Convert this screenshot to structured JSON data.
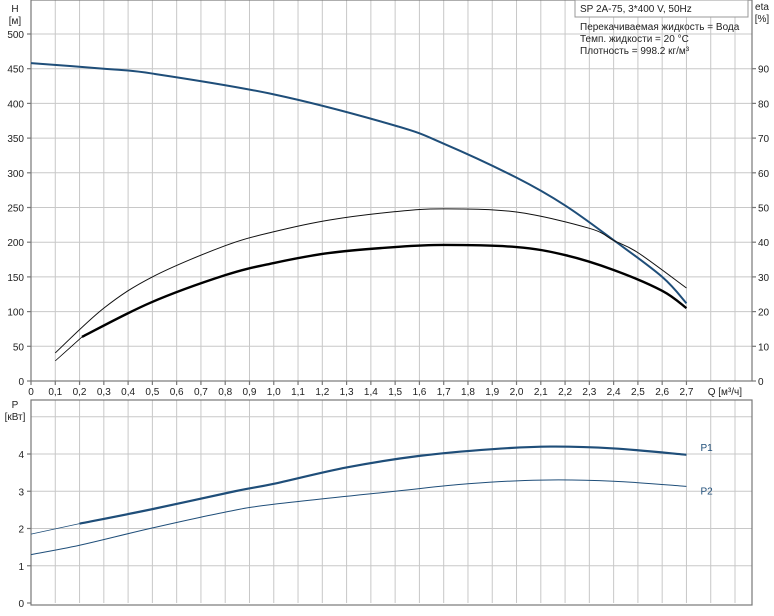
{
  "title_box": "SP 2A-75, 3*400 V, 50Hz",
  "info_lines": [
    "Перекачиваемая жидкость = Вода",
    "Темп. жидкости = 20 °C",
    "Плотность = 998.2 кг/м³"
  ],
  "chart_data": [
    {
      "type": "line",
      "xlabel": "Q [м³/ч]",
      "ylabel": "H\n[м]",
      "y2label": "eta\n[%]",
      "xlim": [
        0,
        2.97
      ],
      "ylim": [
        0,
        549
      ],
      "y2lim": [
        0,
        109.8
      ],
      "x_ticks": [
        "0",
        "0,1",
        "0,2",
        "0,3",
        "0,4",
        "0,5",
        "0,6",
        "0,7",
        "0,8",
        "0,9",
        "1,0",
        "1,1",
        "1,2",
        "1,3",
        "1,4",
        "1,5",
        "1,6",
        "1,7",
        "1,8",
        "1,9",
        "2,0",
        "2,1",
        "2,2",
        "2,3",
        "2,4",
        "2,5",
        "2,6",
        "2,7"
      ],
      "y_ticks": [
        0,
        50,
        100,
        150,
        200,
        250,
        300,
        350,
        400,
        450,
        500
      ],
      "y2_ticks": [
        0,
        10,
        20,
        30,
        40,
        50,
        60,
        70,
        80,
        90
      ],
      "grid": true,
      "series": [
        {
          "axis": "H",
          "color": "#1f4e79",
          "width": 2,
          "x": [
            0,
            0.3,
            0.5,
            1.0,
            1.5,
            1.7,
            2.0,
            2.2,
            2.4,
            2.6,
            2.7
          ],
          "y": [
            458,
            450,
            443,
            413,
            368,
            342,
            293,
            253,
            203,
            150,
            112
          ]
        },
        {
          "axis": "eta",
          "color": "#111111",
          "width": 1,
          "x": [
            0.1,
            0.3,
            0.5,
            0.8,
            1.0,
            1.23,
            1.5,
            1.7,
            2.0,
            2.3,
            2.4,
            2.5,
            2.7
          ],
          "y": [
            8.1,
            21,
            30,
            39,
            43,
            46.4,
            48.8,
            49.6,
            48.7,
            44,
            40.5,
            37,
            26.8
          ]
        },
        {
          "axis": "eta",
          "color": "#000000",
          "width": 2.4,
          "thin_until": 0.21,
          "x": [
            0.1,
            0.21,
            0.49,
            0.8,
            1.0,
            1.23,
            1.5,
            1.7,
            2.0,
            2.2,
            2.4,
            2.6,
            2.7
          ],
          "y": [
            5.8,
            12.7,
            22.5,
            30.5,
            34,
            36.9,
            38.6,
            39.2,
            38.6,
            36.3,
            32,
            26,
            21
          ]
        }
      ]
    },
    {
      "type": "line",
      "xlabel": "",
      "ylabel": "P\n[кВт]",
      "xlim": [
        0,
        2.97
      ],
      "ylim": [
        0,
        5.45
      ],
      "y_ticks": [
        0,
        1,
        2,
        3,
        4
      ],
      "grid": true,
      "series": [
        {
          "name": "P1",
          "color": "#1f4e79",
          "width": 2.2,
          "thin_until": 0.2,
          "x": [
            0,
            0.2,
            0.5,
            0.84,
            1.0,
            1.3,
            1.6,
            1.9,
            2.14,
            2.4,
            2.7
          ],
          "y": [
            1.85,
            2.13,
            2.52,
            3.0,
            3.2,
            3.64,
            3.95,
            4.13,
            4.2,
            4.15,
            3.98
          ]
        },
        {
          "name": "P2",
          "color": "#1f4e79",
          "width": 1,
          "x": [
            0,
            0.2,
            0.49,
            0.8,
            1.0,
            1.5,
            1.8,
            2.1,
            2.4,
            2.7
          ],
          "y": [
            1.3,
            1.55,
            2.0,
            2.44,
            2.65,
            3.0,
            3.2,
            3.3,
            3.27,
            3.13
          ]
        }
      ]
    }
  ]
}
